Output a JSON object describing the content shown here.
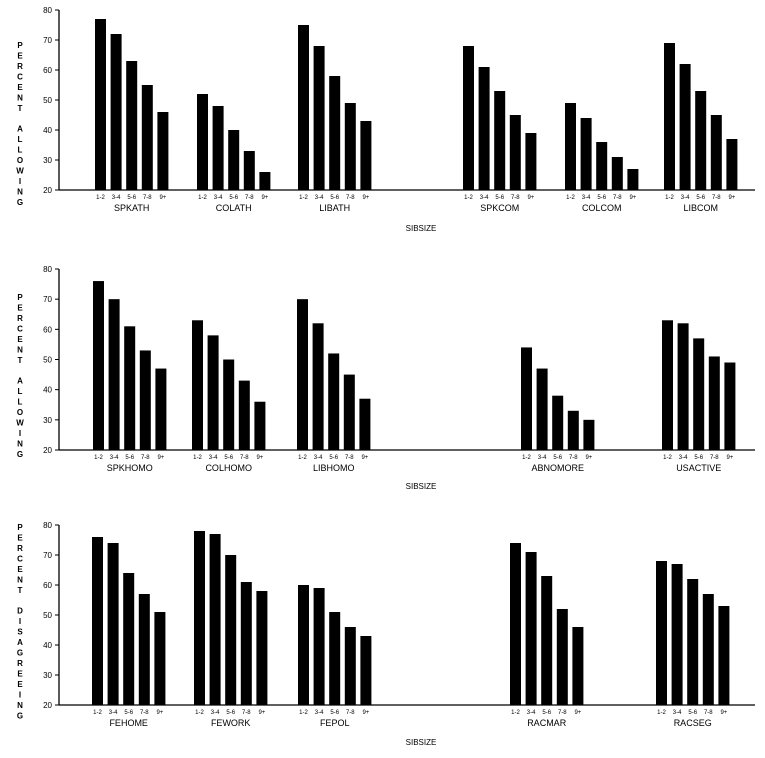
{
  "chart_data": [
    {
      "type": "bar",
      "ylabel": "PERCENT ALLOWING",
      "xlabel": "SIBSIZE",
      "ylim": [
        20,
        80
      ],
      "yticks": [
        20,
        30,
        40,
        50,
        60,
        70,
        80
      ],
      "categories": [
        "1-2",
        "3-4",
        "5-6",
        "7-8",
        "9+"
      ],
      "grid": false,
      "groups": [
        {
          "name": "SPKATH",
          "values": [
            77,
            72,
            63,
            55,
            46
          ]
        },
        {
          "name": "COLATH",
          "values": [
            52,
            48,
            40,
            33,
            26
          ]
        },
        {
          "name": "LIBATH",
          "values": [
            75,
            68,
            58,
            49,
            43
          ]
        },
        {
          "name": "SPKCOM",
          "values": [
            68,
            61,
            53,
            45,
            39
          ]
        },
        {
          "name": "COLCOM",
          "values": [
            49,
            44,
            36,
            31,
            27
          ]
        },
        {
          "name": "LIBCOM",
          "values": [
            69,
            62,
            53,
            45,
            37
          ]
        }
      ]
    },
    {
      "type": "bar",
      "ylabel": "PERCENT ALLOWING",
      "xlabel": "SIBSIZE",
      "ylim": [
        20,
        80
      ],
      "yticks": [
        20,
        30,
        40,
        50,
        60,
        70,
        80
      ],
      "categories": [
        "1-2",
        "3-4",
        "5-6",
        "7-8",
        "9+"
      ],
      "grid": false,
      "groups": [
        {
          "name": "SPKHOMO",
          "values": [
            76,
            70,
            61,
            53,
            47
          ]
        },
        {
          "name": "COLHOMO",
          "values": [
            63,
            58,
            50,
            43,
            36
          ]
        },
        {
          "name": "LIBHOMO",
          "values": [
            70,
            62,
            52,
            45,
            37
          ]
        },
        {
          "name": "ABNOMORE",
          "values": [
            54,
            47,
            38,
            33,
            30
          ]
        },
        {
          "name": "USACTIVE",
          "values": [
            63,
            62,
            57,
            51,
            49
          ]
        }
      ]
    },
    {
      "type": "bar",
      "ylabel": "PERCENT DISAGREEING",
      "xlabel": "SIBSIZE",
      "ylim": [
        20,
        80
      ],
      "yticks": [
        20,
        30,
        40,
        50,
        60,
        70,
        80
      ],
      "categories": [
        "1-2",
        "3-4",
        "5-6",
        "7-8",
        "9+"
      ],
      "grid": false,
      "groups": [
        {
          "name": "FEHOME",
          "values": [
            76,
            74,
            64,
            57,
            51
          ]
        },
        {
          "name": "FEWORK",
          "values": [
            78,
            77,
            70,
            61,
            58
          ]
        },
        {
          "name": "FEPOL",
          "values": [
            60,
            59,
            51,
            46,
            43
          ]
        },
        {
          "name": "RACMAR",
          "values": [
            74,
            71,
            63,
            52,
            46
          ]
        },
        {
          "name": "RACSEG",
          "values": [
            68,
            67,
            62,
            57,
            53
          ]
        }
      ]
    }
  ]
}
